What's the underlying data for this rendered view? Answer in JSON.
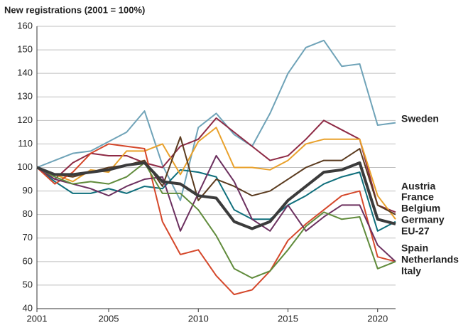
{
  "chart_data": {
    "type": "line",
    "title": "New registrations (2001 = 100%)",
    "x": [
      2001,
      2002,
      2003,
      2004,
      2005,
      2006,
      2007,
      2008,
      2009,
      2010,
      2011,
      2012,
      2013,
      2014,
      2015,
      2016,
      2017,
      2018,
      2019,
      2020,
      2021
    ],
    "xlim": [
      2001,
      2021
    ],
    "xticks": [
      2001,
      2005,
      2010,
      2015,
      2020
    ],
    "ylim": [
      40,
      160
    ],
    "yticks": [
      40,
      50,
      60,
      70,
      80,
      90,
      100,
      110,
      120,
      130,
      140,
      150,
      160
    ],
    "grid": true,
    "series": [
      {
        "name": "Sweden",
        "color": "#6fa3b8",
        "values": [
          100,
          103,
          106,
          107,
          111,
          115,
          124,
          101,
          86,
          117,
          123,
          114,
          109,
          123,
          140,
          151,
          154,
          143,
          144,
          118,
          119
        ]
      },
      {
        "name": "Austria",
        "color": "#8e2a45",
        "values": [
          100,
          95,
          102,
          106,
          105,
          105,
          102,
          100,
          109,
          112,
          121,
          115,
          109,
          103,
          105,
          112,
          120,
          116,
          112,
          84,
          81
        ]
      },
      {
        "name": "France",
        "color": "#0f6f7c",
        "values": [
          100,
          94,
          89,
          89,
          91,
          89,
          92,
          91,
          99,
          98,
          96,
          82,
          78,
          78,
          84,
          88,
          93,
          96,
          98,
          73,
          77
        ]
      },
      {
        "name": "Belgium",
        "color": "#e9a12b",
        "values": [
          100,
          97,
          94,
          99,
          98,
          107,
          107,
          110,
          97,
          111,
          117,
          100,
          100,
          99,
          103,
          110,
          112,
          112,
          112,
          88,
          78
        ]
      },
      {
        "name": "Germany",
        "color": "#5b3b1f",
        "values": [
          100,
          97,
          96,
          98,
          100,
          101,
          103,
          92,
          113,
          86,
          95,
          92,
          88,
          90,
          95,
          100,
          103,
          103,
          108,
          84,
          80
        ]
      },
      {
        "name": "EU-27",
        "color": "#3b3b3b",
        "line_width": 4,
        "values": [
          100,
          97,
          97,
          98,
          99,
          101,
          102,
          94,
          93,
          88,
          87,
          77,
          74,
          77,
          86,
          92,
          98,
          99,
          102,
          78,
          76
        ]
      },
      {
        "name": "Spain",
        "color": "#d5482b",
        "values": [
          100,
          93,
          98,
          106,
          110,
          109,
          108,
          77,
          63,
          65,
          54,
          46,
          48,
          56,
          69,
          76,
          82,
          88,
          90,
          62,
          60
        ]
      },
      {
        "name": "Netherlands",
        "color": "#6c305f",
        "values": [
          100,
          95,
          93,
          91,
          88,
          92,
          95,
          96,
          73,
          89,
          105,
          94,
          78,
          73,
          84,
          73,
          79,
          84,
          84,
          67,
          60
        ]
      },
      {
        "name": "Italy",
        "color": "#608b3b",
        "values": [
          100,
          96,
          93,
          94,
          93,
          96,
          102,
          89,
          89,
          82,
          71,
          57,
          53,
          56,
          65,
          75,
          81,
          78,
          79,
          57,
          60
        ]
      }
    ]
  }
}
